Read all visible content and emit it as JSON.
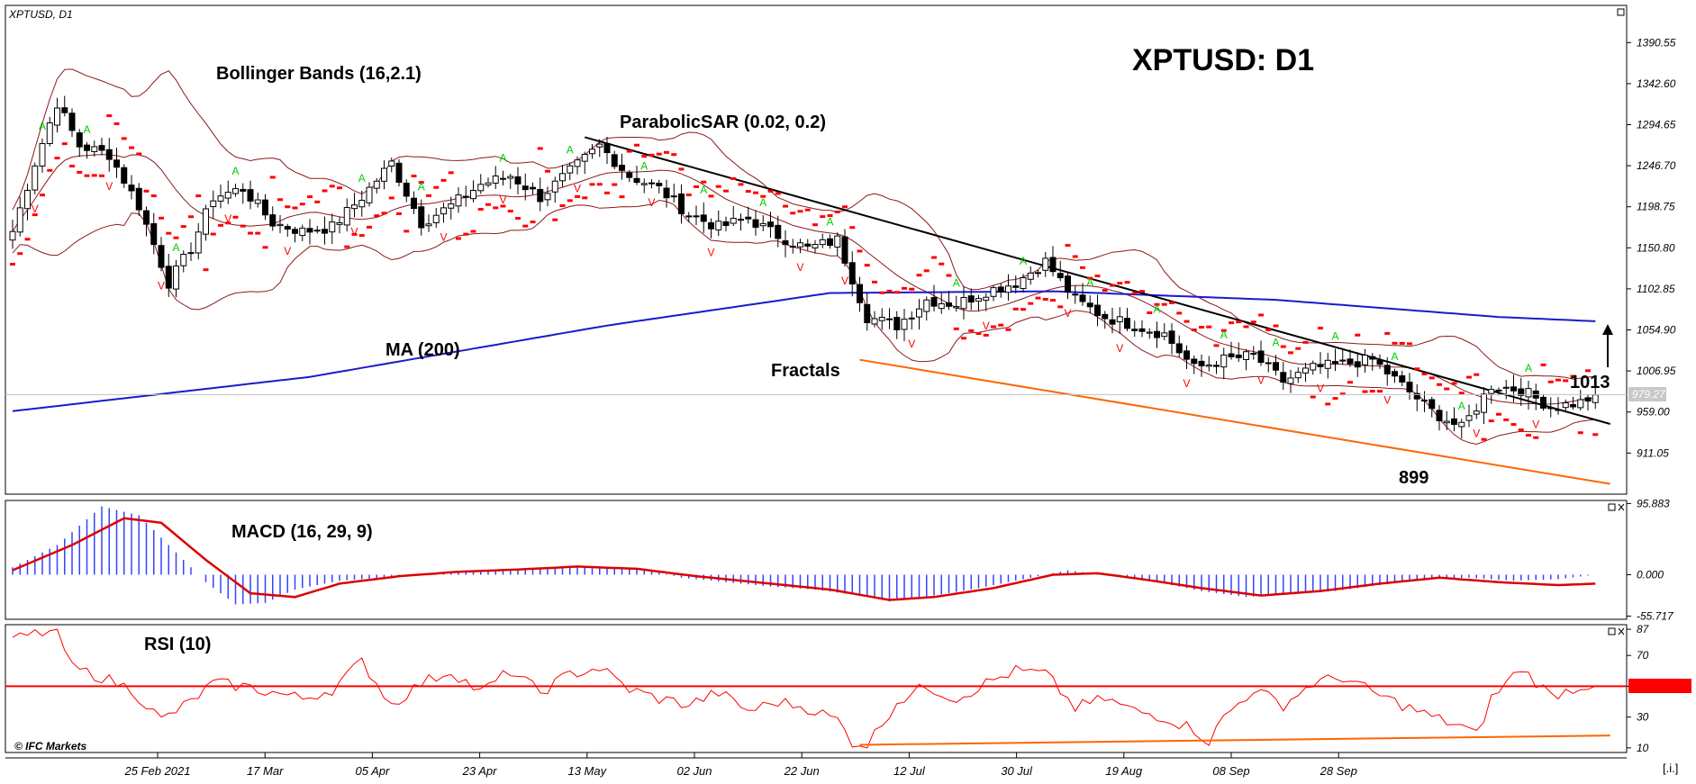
{
  "symbol_label": "XPTUSD, D1",
  "big_title": "XPTUSD: D1",
  "watermark": "© IFC Markets",
  "corner_button": "[.i.]",
  "current_price_label": "979.27",
  "annotations": {
    "bollinger": "Bollinger Bands (16,2.1)",
    "sar": "ParabolicSAR (0.02, 0.2)",
    "ma": "MA (200)",
    "fractals": "Fractals",
    "target": "1013",
    "low": "899",
    "macd": "MACD (16, 29, 9)",
    "rsi": "RSI (10)"
  },
  "colors": {
    "bollinger": "#8b1a1a",
    "ma200": "#1a1acc",
    "sar": "#ff0000",
    "fractal_up": "#00cc00",
    "fractal_down": "#ff0000",
    "trend_resistance": "#000000",
    "trend_support": "#ff6600",
    "macd_hist": "#3344ff",
    "macd_signal": "#dd0000",
    "rsi_line": "#ff0000",
    "rsi_level": "#ff0000"
  },
  "x_axis_labels": [
    "25 Feb 2021",
    "17 Mar",
    "05 Apr",
    "23 Apr",
    "13 May",
    "02 Jun",
    "22 Jun",
    "12 Jul",
    "30 Jul",
    "19 Aug",
    "08 Sep",
    "28 Sep"
  ],
  "chart_data": [
    {
      "type": "candlestick",
      "panel": "price",
      "title": "XPTUSD: D1",
      "y_ticks": [
        1390.55,
        1342.6,
        1294.65,
        1246.7,
        1198.75,
        1150.8,
        1102.85,
        1054.9,
        1006.95,
        959.0,
        911.05
      ],
      "ylim": [
        863,
        1434
      ],
      "current_price": 979.27,
      "indicators": [
        "Bollinger Bands (16,2.1)",
        "ParabolicSAR (0.02, 0.2)",
        "MA (200)",
        "Fractals"
      ],
      "close_anchors": [
        [
          0,
          1170
        ],
        [
          3,
          1250
        ],
        [
          6,
          1320
        ],
        [
          9,
          1270
        ],
        [
          13,
          1260
        ],
        [
          17,
          1200
        ],
        [
          21,
          1110
        ],
        [
          24,
          1150
        ],
        [
          27,
          1210
        ],
        [
          31,
          1220
        ],
        [
          35,
          1180
        ],
        [
          39,
          1170
        ],
        [
          43,
          1175
        ],
        [
          47,
          1210
        ],
        [
          51,
          1250
        ],
        [
          55,
          1180
        ],
        [
          59,
          1200
        ],
        [
          63,
          1225
        ],
        [
          67,
          1235
        ],
        [
          71,
          1210
        ],
        [
          75,
          1240
        ],
        [
          79,
          1270
        ],
        [
          83,
          1235
        ],
        [
          87,
          1220
        ],
        [
          91,
          1190
        ],
        [
          95,
          1175
        ],
        [
          99,
          1185
        ],
        [
          103,
          1165
        ],
        [
          107,
          1150
        ],
        [
          111,
          1160
        ],
        [
          115,
          1070
        ],
        [
          119,
          1060
        ],
        [
          123,
          1090
        ],
        [
          127,
          1085
        ],
        [
          131,
          1100
        ],
        [
          135,
          1110
        ],
        [
          139,
          1135
        ],
        [
          143,
          1090
        ],
        [
          147,
          1070
        ],
        [
          151,
          1060
        ],
        [
          155,
          1050
        ],
        [
          159,
          1010
        ],
        [
          163,
          1020
        ],
        [
          167,
          1025
        ],
        [
          171,
          995
        ],
        [
          175,
          1010
        ],
        [
          179,
          1015
        ],
        [
          183,
          1020
        ],
        [
          187,
          990
        ],
        [
          191,
          960
        ],
        [
          195,
          940
        ],
        [
          199,
          990
        ],
        [
          203,
          985
        ],
        [
          207,
          965
        ],
        [
          211,
          970
        ],
        [
          213,
          979
        ]
      ],
      "ma200_anchors": [
        [
          0,
          960
        ],
        [
          40,
          1000
        ],
        [
          80,
          1060
        ],
        [
          110,
          1098
        ],
        [
          140,
          1100
        ],
        [
          170,
          1090
        ],
        [
          200,
          1070
        ],
        [
          213,
          1065
        ]
      ],
      "fractal_up_idx": [
        4,
        10,
        22,
        30,
        47,
        55,
        66,
        75,
        85,
        93,
        101,
        110,
        127,
        136,
        145,
        154,
        163,
        170,
        178,
        186,
        195,
        204
      ],
      "fractal_down_idx": [
        3,
        13,
        20,
        29,
        37,
        46,
        58,
        66,
        76,
        86,
        94,
        106,
        112,
        121,
        131,
        142,
        149,
        158,
        168,
        176,
        185,
        197,
        205
      ],
      "trendline_resistance": [
        [
          77,
          1280
        ],
        [
          215,
          945
        ]
      ],
      "trendline_support": [
        [
          114,
          1020
        ],
        [
          215,
          875
        ]
      ],
      "arrow_target": 1013,
      "swing_low": 899
    },
    {
      "type": "macd",
      "panel": "macd",
      "title": "MACD (16, 29, 9)",
      "y_ticks": [
        95.883,
        0.0,
        -55.717
      ],
      "ylim": [
        -60,
        100
      ],
      "histogram_anchors": [
        [
          0,
          10
        ],
        [
          6,
          40
        ],
        [
          12,
          92
        ],
        [
          17,
          80
        ],
        [
          22,
          30
        ],
        [
          26,
          -10
        ],
        [
          30,
          -40
        ],
        [
          34,
          -38
        ],
        [
          38,
          -20
        ],
        [
          44,
          -8
        ],
        [
          50,
          -4
        ],
        [
          56,
          2
        ],
        [
          62,
          6
        ],
        [
          68,
          8
        ],
        [
          74,
          10
        ],
        [
          80,
          10
        ],
        [
          86,
          6
        ],
        [
          90,
          -4
        ],
        [
          96,
          -10
        ],
        [
          102,
          -16
        ],
        [
          108,
          -20
        ],
        [
          114,
          -28
        ],
        [
          118,
          -36
        ],
        [
          124,
          -28
        ],
        [
          130,
          -18
        ],
        [
          136,
          -6
        ],
        [
          142,
          6
        ],
        [
          148,
          -2
        ],
        [
          154,
          -10
        ],
        [
          160,
          -22
        ],
        [
          166,
          -30
        ],
        [
          172,
          -26
        ],
        [
          178,
          -22
        ],
        [
          184,
          -14
        ],
        [
          190,
          -6
        ],
        [
          196,
          -4
        ],
        [
          202,
          -8
        ],
        [
          208,
          -6
        ],
        [
          213,
          0
        ]
      ],
      "signal_anchors": [
        [
          0,
          6
        ],
        [
          8,
          40
        ],
        [
          15,
          76
        ],
        [
          20,
          70
        ],
        [
          26,
          20
        ],
        [
          32,
          -25
        ],
        [
          38,
          -30
        ],
        [
          44,
          -12
        ],
        [
          52,
          -2
        ],
        [
          60,
          4
        ],
        [
          68,
          7
        ],
        [
          76,
          11
        ],
        [
          84,
          8
        ],
        [
          92,
          -2
        ],
        [
          100,
          -10
        ],
        [
          110,
          -20
        ],
        [
          118,
          -34
        ],
        [
          124,
          -30
        ],
        [
          132,
          -18
        ],
        [
          140,
          0
        ],
        [
          146,
          2
        ],
        [
          152,
          -6
        ],
        [
          160,
          -18
        ],
        [
          168,
          -28
        ],
        [
          176,
          -22
        ],
        [
          184,
          -12
        ],
        [
          192,
          -4
        ],
        [
          200,
          -10
        ],
        [
          208,
          -14
        ],
        [
          213,
          -12
        ]
      ]
    },
    {
      "type": "line",
      "panel": "rsi",
      "title": "RSI (10)",
      "y_ticks": [
        87,
        70,
        50,
        30,
        10
      ],
      "ylim": [
        7,
        90
      ],
      "level": 50,
      "rsi_anchors": [
        [
          0,
          80
        ],
        [
          3,
          84
        ],
        [
          6,
          86
        ],
        [
          8,
          62
        ],
        [
          12,
          56
        ],
        [
          16,
          48
        ],
        [
          20,
          28
        ],
        [
          24,
          40
        ],
        [
          27,
          52
        ],
        [
          31,
          50
        ],
        [
          35,
          46
        ],
        [
          39,
          42
        ],
        [
          43,
          48
        ],
        [
          47,
          66
        ],
        [
          51,
          38
        ],
        [
          55,
          52
        ],
        [
          59,
          60
        ],
        [
          63,
          46
        ],
        [
          67,
          60
        ],
        [
          71,
          46
        ],
        [
          75,
          58
        ],
        [
          79,
          62
        ],
        [
          83,
          48
        ],
        [
          87,
          42
        ],
        [
          91,
          38
        ],
        [
          95,
          46
        ],
        [
          99,
          34
        ],
        [
          103,
          40
        ],
        [
          107,
          36
        ],
        [
          111,
          28
        ],
        [
          113,
          14
        ],
        [
          115,
          12
        ],
        [
          119,
          40
        ],
        [
          123,
          50
        ],
        [
          127,
          42
        ],
        [
          131,
          52
        ],
        [
          135,
          60
        ],
        [
          139,
          58
        ],
        [
          143,
          36
        ],
        [
          147,
          42
        ],
        [
          151,
          34
        ],
        [
          155,
          30
        ],
        [
          159,
          22
        ],
        [
          161,
          14
        ],
        [
          163,
          30
        ],
        [
          167,
          48
        ],
        [
          171,
          38
        ],
        [
          175,
          52
        ],
        [
          179,
          56
        ],
        [
          183,
          46
        ],
        [
          187,
          38
        ],
        [
          191,
          30
        ],
        [
          195,
          24
        ],
        [
          197,
          18
        ],
        [
          199,
          42
        ],
        [
          203,
          62
        ],
        [
          207,
          44
        ],
        [
          211,
          50
        ],
        [
          213,
          52
        ]
      ],
      "support_line": [
        [
          114,
          12
        ],
        [
          215,
          18
        ]
      ]
    }
  ]
}
